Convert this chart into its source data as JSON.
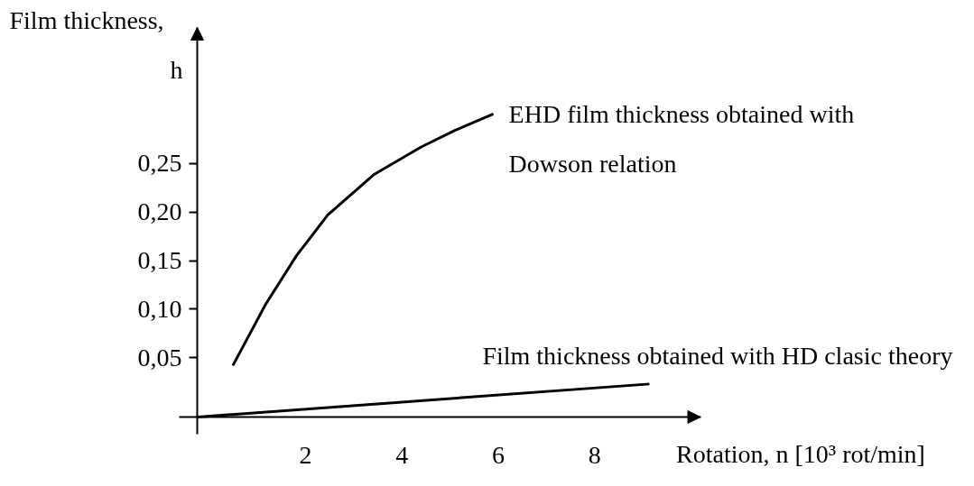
{
  "chart_data": {
    "type": "line",
    "xlabel": "Rotation, n [10³ rot/min]",
    "ylabel": "Film thickness,\nh",
    "series": [
      {
        "name": "EHD film thickness obtained with\nDowson relation",
        "color": "#000000",
        "x": [
          0.49,
          1.17,
          1.81,
          2.46,
          3.43,
          4.4,
          5.1,
          5.9
        ],
        "values": [
          0.042,
          0.105,
          0.155,
          0.197,
          0.239,
          0.267,
          0.284,
          0.301
        ]
      },
      {
        "name": "Film thickness obtained with HD clasic theory",
        "color": "#000000",
        "x": [
          -0.24,
          9.14
        ],
        "values": [
          -0.011,
          0.023
        ]
      }
    ],
    "xlim": [
      -0.25,
      10.2
    ],
    "ylim": [
      -0.011,
      0.39
    ],
    "xticks": [
      2,
      4,
      6,
      8
    ],
    "yticks": [
      {
        "value": 0.05,
        "label": "0,05"
      },
      {
        "value": 0.1,
        "label": "0,10"
      },
      {
        "value": 0.15,
        "label": "0,15"
      },
      {
        "value": 0.2,
        "label": "0,20"
      },
      {
        "value": 0.25,
        "label": "0,25"
      }
    ],
    "grid": false,
    "marker": "none",
    "line_style": "solid"
  }
}
